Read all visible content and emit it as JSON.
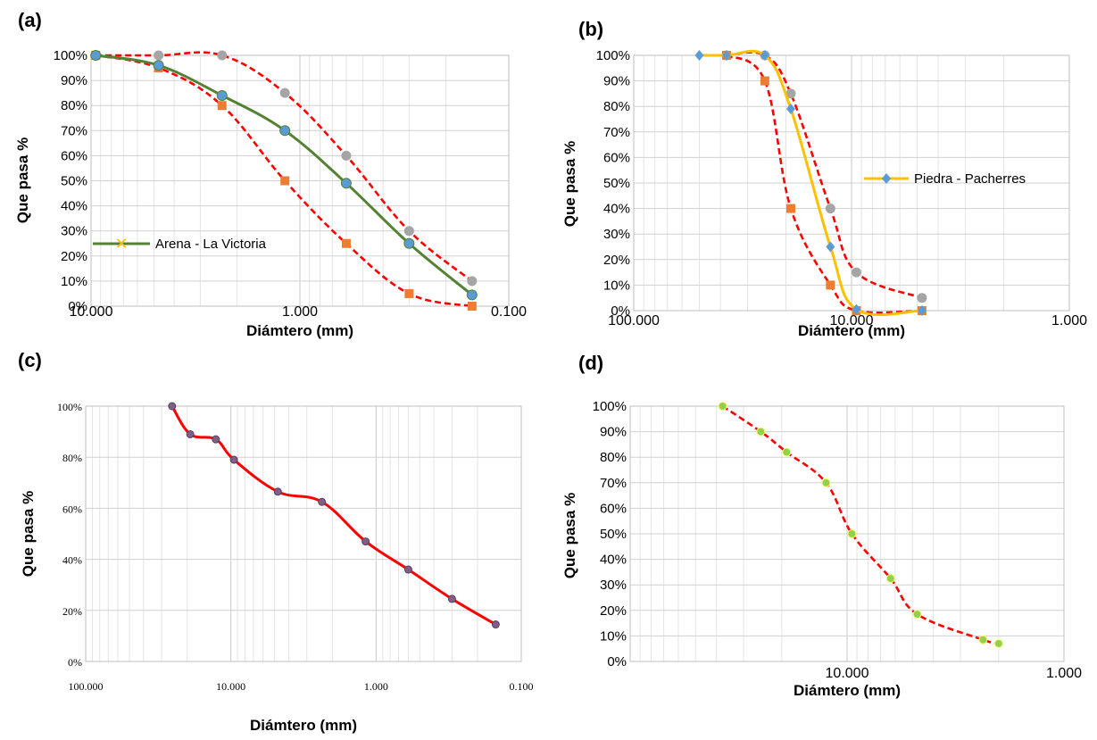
{
  "chart_data": [
    {
      "panel": "(a)",
      "type": "line",
      "x_scale": "log",
      "x_reversed": true,
      "xlim": [
        10,
        0.1
      ],
      "ylim": [
        0,
        100
      ],
      "xlabel": "Diámtero (mm)",
      "ylabel": "Que pasa %",
      "x_tick_labels": [
        "10.000",
        "1.000",
        "0.100"
      ],
      "y_tick_labels": [
        "0%",
        "10%",
        "20%",
        "30%",
        "40%",
        "50%",
        "60%",
        "70%",
        "80%",
        "90%",
        "100%"
      ],
      "legend_position": "center-left",
      "series": [
        {
          "name": "Arena  - La Victoria",
          "color": "#548235",
          "marker_color": "#5B9BD5",
          "style": "solid",
          "x": [
            9.5,
            4.75,
            2.36,
            1.18,
            0.6,
            0.3,
            0.15
          ],
          "y": [
            100,
            96,
            84,
            70,
            49,
            25,
            4.5
          ]
        },
        {
          "color": "#FF0000",
          "marker_color": "#A5A5A5",
          "style": "dashed",
          "x": [
            9.5,
            4.75,
            2.36,
            1.18,
            0.6,
            0.3,
            0.15
          ],
          "y": [
            100,
            100,
            100,
            85,
            60,
            30,
            10
          ]
        },
        {
          "color": "#FF0000",
          "marker_color": "#ED7D31",
          "style": "dashed",
          "x": [
            9.5,
            4.75,
            2.36,
            1.18,
            0.6,
            0.3,
            0.15
          ],
          "y": [
            100,
            95,
            80,
            50,
            25,
            5,
            0
          ]
        }
      ]
    },
    {
      "panel": "(b)",
      "type": "line",
      "x_scale": "log",
      "x_reversed": true,
      "xlim": [
        100,
        1
      ],
      "ylim": [
        0,
        100
      ],
      "xlabel": "Diámtero (mm)",
      "ylabel": "Que pasa %",
      "x_tick_labels": [
        "100.000",
        "10.000",
        "1.000"
      ],
      "y_tick_labels": [
        "0%",
        "10%",
        "20%",
        "30%",
        "40%",
        "50%",
        "60%",
        "70%",
        "80%",
        "90%",
        "100%"
      ],
      "legend_position": "center-right",
      "series": [
        {
          "name": "Piedra - Pacherres",
          "color": "#FFC000",
          "marker_color": "#5B9BD5",
          "style": "solid",
          "x": [
            50,
            37.5,
            25,
            19,
            12.5,
            9.5,
            4.75
          ],
          "y": [
            100,
            100,
            100,
            79,
            25,
            0.5,
            0
          ]
        },
        {
          "color": "#FF0000",
          "marker_color": "#A5A5A5",
          "style": "dashed",
          "x": [
            37.5,
            25,
            19,
            12.5,
            9.5,
            4.75
          ],
          "y": [
            100,
            100,
            85,
            40,
            15,
            5
          ]
        },
        {
          "color": "#FF0000",
          "marker_color": "#ED7D31",
          "style": "dashed",
          "x": [
            37.5,
            25,
            19,
            12.5,
            9.5,
            4.75
          ],
          "y": [
            100,
            90,
            40,
            10,
            0,
            0
          ]
        }
      ]
    },
    {
      "panel": "(c)",
      "type": "line",
      "x_scale": "log",
      "x_reversed": true,
      "xlim": [
        100,
        0.1
      ],
      "ylim": [
        0,
        100
      ],
      "xlabel": "Diámtero (mm)",
      "ylabel": "Que pasa %",
      "x_tick_labels": [
        "100.000",
        "10.000",
        "1.000",
        "0.100"
      ],
      "y_tick_labels": [
        "0%",
        "20%",
        "40%",
        "60%",
        "80%",
        "100%"
      ],
      "series": [
        {
          "color": "#FF0000",
          "marker_color": "#7F6084",
          "style": "solid",
          "x": [
            25.4,
            19.05,
            12.7,
            9.525,
            4.75,
            2.36,
            1.18,
            0.6,
            0.3,
            0.15
          ],
          "y": [
            100,
            89,
            87,
            79,
            66.5,
            62.5,
            47,
            36,
            24.5,
            14.5
          ]
        }
      ]
    },
    {
      "panel": "(d)",
      "type": "line",
      "x_scale": "log",
      "x_reversed": true,
      "xlim": [
        100,
        1
      ],
      "ylim": [
        0,
        100
      ],
      "xlabel": "Diámtero (mm)",
      "ylabel": "Que pasa %",
      "x_tick_labels": [
        "10.000",
        "1.000"
      ],
      "y_tick_labels": [
        "0%",
        "10%",
        "20%",
        "30%",
        "40%",
        "50%",
        "60%",
        "70%",
        "80%",
        "90%",
        "100%"
      ],
      "series": [
        {
          "color": "#FF0000",
          "marker_color": "#92D050",
          "style": "dashed",
          "x": [
            37.5,
            25,
            19,
            12.5,
            9.5,
            6.3,
            4.75,
            2.36,
            2.0
          ],
          "y": [
            100,
            90,
            82,
            70,
            50,
            32.5,
            18.5,
            8.5,
            7
          ]
        }
      ]
    }
  ]
}
